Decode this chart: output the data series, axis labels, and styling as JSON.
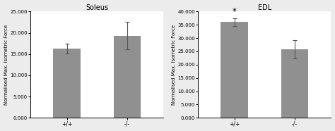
{
  "soleus": {
    "title": "Soleus",
    "categories": [
      "+/+",
      "-/-"
    ],
    "values": [
      16300,
      19300
    ],
    "errors": [
      1200,
      3200
    ],
    "ylim": [
      0,
      25000
    ],
    "yticks": [
      0,
      5000,
      10000,
      15000,
      20000,
      25000
    ],
    "ytick_labels": [
      "0.000",
      "5.000",
      "10.000",
      "15.000",
      "20.000",
      "25.000"
    ],
    "ylabel": "Normalised Max. Isometric Force",
    "bar_color": "#909090",
    "error_color": "#555555",
    "asterisk": null
  },
  "edl": {
    "title": "EDL",
    "categories": [
      "+/+",
      "-/-"
    ],
    "values": [
      36000,
      25800
    ],
    "errors": [
      1500,
      3500
    ],
    "ylim": [
      0,
      40000
    ],
    "yticks": [
      0,
      5000,
      10000,
      15000,
      20000,
      25000,
      30000,
      35000,
      40000
    ],
    "ytick_labels": [
      "0.000",
      "5.000",
      "10.000",
      "15.000",
      "20.000",
      "25.000",
      "30.000",
      "35.000",
      "40.000"
    ],
    "ylabel": "Normalised Max. Isometric Force",
    "bar_color": "#909090",
    "error_color": "#555555",
    "asterisk": 0
  },
  "bar_width": 0.45,
  "fig_bg": "#ececec",
  "panel_bg": "#ffffff",
  "font_size": 5.5,
  "title_font_size": 7
}
